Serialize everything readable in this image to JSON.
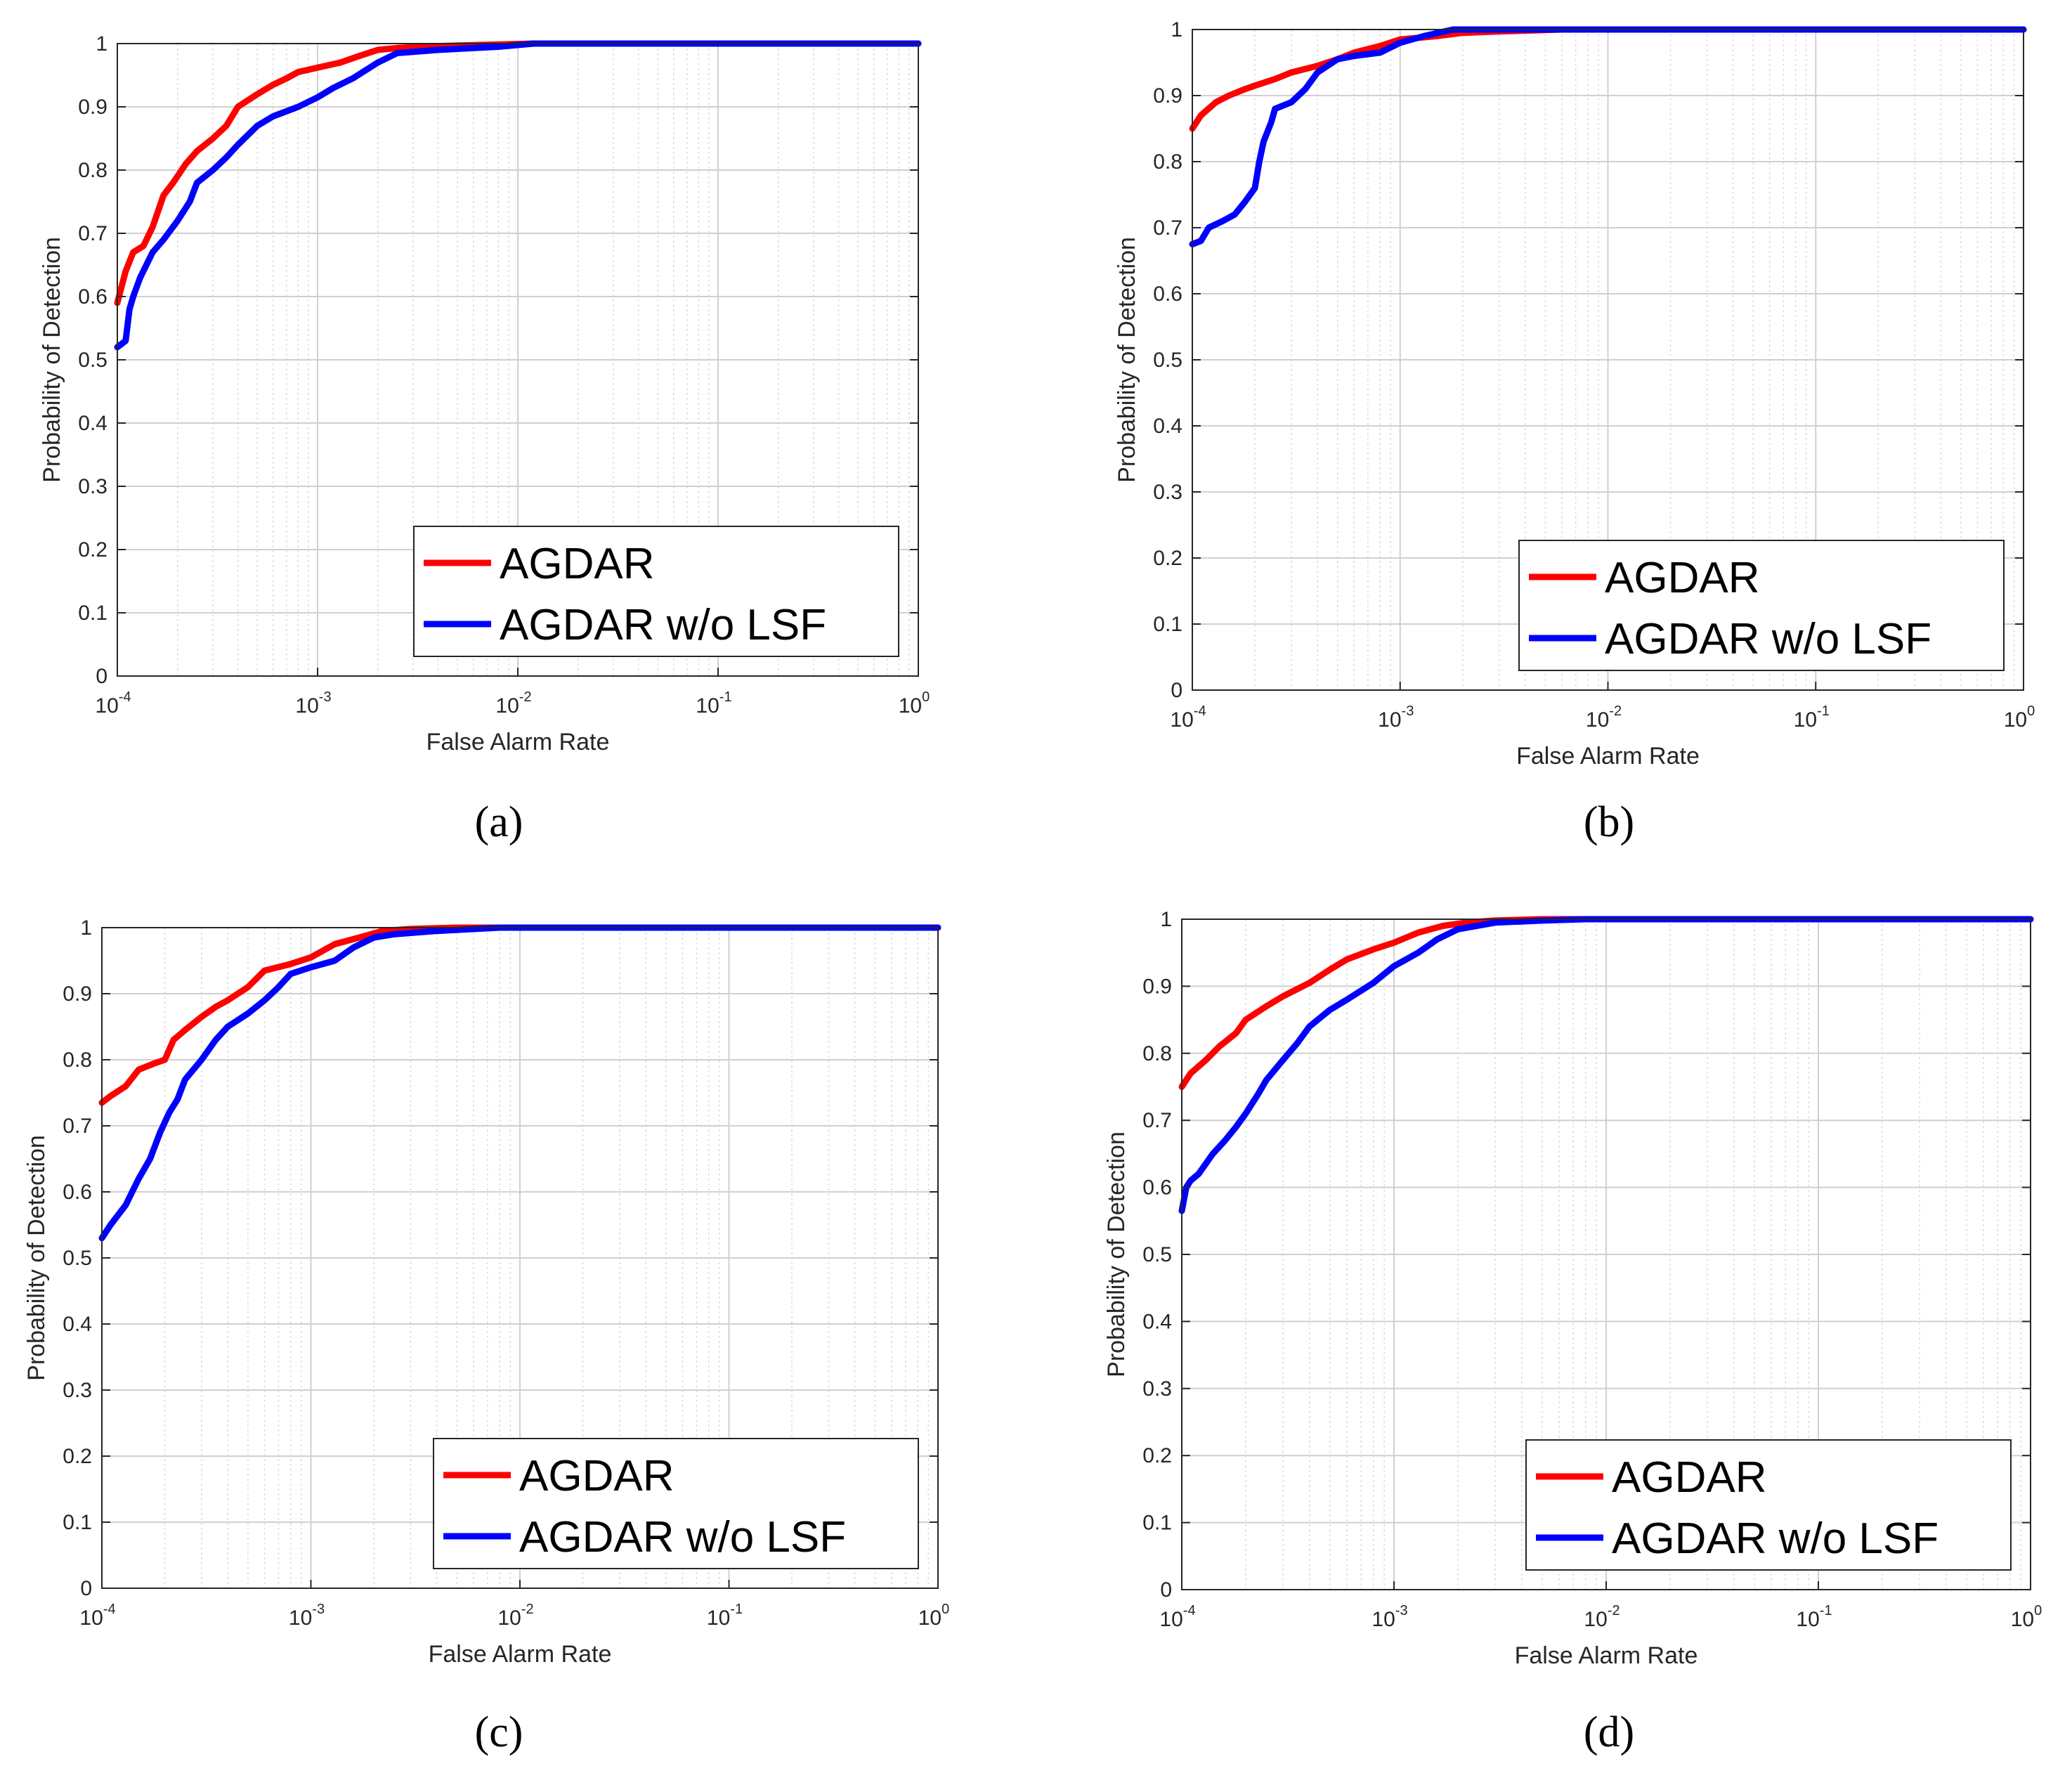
{
  "figure": {
    "panels": [
      {
        "caption": "(a)",
        "chart_data": {
          "type": "line",
          "xscale": "log",
          "xlim": [
            0.0001,
            1
          ],
          "ylim": [
            0,
            1
          ],
          "xlabel": "False Alarm Rate",
          "ylabel": "Probability of Detection",
          "xticks": [
            {
              "base": "10",
              "exp": "-4"
            },
            {
              "base": "10",
              "exp": "-3"
            },
            {
              "base": "10",
              "exp": "-2"
            },
            {
              "base": "10",
              "exp": "-1"
            },
            {
              "base": "10",
              "exp": "0"
            }
          ],
          "yticks": [
            "0",
            "0.1",
            "0.2",
            "0.3",
            "0.4",
            "0.5",
            "0.6",
            "0.7",
            "0.8",
            "0.9",
            "1"
          ],
          "grid": true,
          "legend_position": "bottom-right",
          "series": [
            {
              "name": "AGDAR",
              "color": "#ff0000",
              "x": [
                0.0001,
                0.00011,
                0.00012,
                0.000135,
                0.00015,
                0.00017,
                0.00019,
                0.00022,
                0.00025,
                0.0003,
                0.00035,
                0.0004,
                0.0005,
                0.0006,
                0.0007,
                0.0008,
                0.001,
                0.0013,
                0.0016,
                0.002,
                0.0025,
                0.004,
                0.007,
                0.012,
                1
              ],
              "y": [
                0.59,
                0.64,
                0.67,
                0.68,
                0.71,
                0.76,
                0.78,
                0.81,
                0.83,
                0.85,
                0.87,
                0.9,
                0.92,
                0.935,
                0.945,
                0.955,
                0.962,
                0.97,
                0.98,
                0.99,
                0.993,
                0.996,
                0.998,
                1.0,
                1.0
              ]
            },
            {
              "name": "AGDAR w/o LSF",
              "color": "#0000ff",
              "x": [
                0.0001,
                0.00011,
                0.000115,
                0.00012,
                0.00013,
                0.00015,
                0.00017,
                0.0002,
                0.00023,
                0.00025,
                0.0003,
                0.00035,
                0.0004,
                0.0005,
                0.0006,
                0.0008,
                0.001,
                0.0012,
                0.0015,
                0.002,
                0.0025,
                0.004,
                0.008,
                0.012,
                1
              ],
              "y": [
                0.52,
                0.53,
                0.58,
                0.6,
                0.63,
                0.67,
                0.69,
                0.72,
                0.75,
                0.78,
                0.8,
                0.82,
                0.84,
                0.87,
                0.885,
                0.9,
                0.915,
                0.93,
                0.945,
                0.97,
                0.985,
                0.99,
                0.995,
                1.0,
                1.0
              ]
            }
          ],
          "legend": [
            "AGDAR",
            "AGDAR w/o LSF"
          ]
        }
      },
      {
        "caption": "(b)",
        "chart_data": {
          "type": "line",
          "xscale": "log",
          "xlim": [
            0.0001,
            1
          ],
          "ylim": [
            0,
            1
          ],
          "xlabel": "False Alarm Rate",
          "ylabel": "Probability of Detection",
          "xticks": [
            {
              "base": "10",
              "exp": "-4"
            },
            {
              "base": "10",
              "exp": "-3"
            },
            {
              "base": "10",
              "exp": "-2"
            },
            {
              "base": "10",
              "exp": "-1"
            },
            {
              "base": "10",
              "exp": "0"
            }
          ],
          "yticks": [
            "0",
            "0.1",
            "0.2",
            "0.3",
            "0.4",
            "0.5",
            "0.6",
            "0.7",
            "0.8",
            "0.9",
            "1"
          ],
          "grid": true,
          "legend_position": "bottom-right",
          "series": [
            {
              "name": "AGDAR",
              "color": "#ff0000",
              "x": [
                0.0001,
                0.00011,
                0.00013,
                0.00015,
                0.00018,
                0.0002,
                0.00025,
                0.0003,
                0.0004,
                0.0005,
                0.0006,
                0.0008,
                0.001,
                0.0015,
                0.002,
                0.003,
                0.006,
                1
              ],
              "y": [
                0.85,
                0.87,
                0.89,
                0.9,
                0.91,
                0.915,
                0.925,
                0.935,
                0.945,
                0.955,
                0.965,
                0.975,
                0.985,
                0.99,
                0.995,
                0.997,
                1.0,
                1.0
              ]
            },
            {
              "name": "AGDAR w/o LSF",
              "color": "#0000ff",
              "x": [
                0.0001,
                0.00011,
                0.00012,
                0.00014,
                0.00016,
                0.00018,
                0.0002,
                0.00021,
                0.00022,
                0.00024,
                0.00025,
                0.0003,
                0.00035,
                0.0004,
                0.0005,
                0.0006,
                0.0008,
                0.001,
                0.0013,
                0.0018,
                1
              ],
              "y": [
                0.675,
                0.68,
                0.7,
                0.71,
                0.72,
                0.74,
                0.76,
                0.8,
                0.83,
                0.86,
                0.88,
                0.89,
                0.91,
                0.935,
                0.955,
                0.96,
                0.965,
                0.98,
                0.99,
                1.0,
                1.0
              ]
            }
          ],
          "legend": [
            "AGDAR",
            "AGDAR w/o LSF"
          ]
        }
      },
      {
        "caption": "(c)",
        "chart_data": {
          "type": "line",
          "xscale": "log",
          "xlim": [
            0.0001,
            1
          ],
          "ylim": [
            0,
            1
          ],
          "xlabel": "False Alarm Rate",
          "ylabel": "Probability of Detection",
          "xticks": [
            {
              "base": "10",
              "exp": "-4"
            },
            {
              "base": "10",
              "exp": "-3"
            },
            {
              "base": "10",
              "exp": "-2"
            },
            {
              "base": "10",
              "exp": "-1"
            },
            {
              "base": "10",
              "exp": "0"
            }
          ],
          "yticks": [
            "0",
            "0.1",
            "0.2",
            "0.3",
            "0.4",
            "0.5",
            "0.6",
            "0.7",
            "0.8",
            "0.9",
            "1"
          ],
          "grid": true,
          "legend_position": "bottom-right",
          "series": [
            {
              "name": "AGDAR",
              "color": "#ff0000",
              "x": [
                0.0001,
                0.00011,
                0.00013,
                0.00015,
                0.00018,
                0.0002,
                0.00022,
                0.00025,
                0.0003,
                0.00035,
                0.0004,
                0.0005,
                0.0006,
                0.0008,
                0.001,
                0.0013,
                0.0017,
                0.0022,
                0.003,
                0.005,
                0.008,
                1
              ],
              "y": [
                0.735,
                0.745,
                0.76,
                0.785,
                0.795,
                0.8,
                0.83,
                0.845,
                0.865,
                0.88,
                0.89,
                0.91,
                0.935,
                0.945,
                0.955,
                0.975,
                0.985,
                0.995,
                0.998,
                1.0,
                1.0,
                1.0
              ]
            },
            {
              "name": "AGDAR w/o LSF",
              "color": "#0000ff",
              "x": [
                0.0001,
                0.00011,
                0.00013,
                0.00015,
                0.00017,
                0.00019,
                0.00021,
                0.00023,
                0.00025,
                0.0003,
                0.00035,
                0.0004,
                0.0005,
                0.0006,
                0.0007,
                0.0008,
                0.001,
                0.0013,
                0.0016,
                0.002,
                0.0025,
                0.004,
                0.008,
                1
              ],
              "y": [
                0.53,
                0.55,
                0.58,
                0.62,
                0.65,
                0.69,
                0.72,
                0.74,
                0.77,
                0.8,
                0.83,
                0.85,
                0.87,
                0.89,
                0.91,
                0.93,
                0.94,
                0.95,
                0.97,
                0.985,
                0.99,
                0.995,
                1.0,
                1.0
              ]
            }
          ],
          "legend": [
            "AGDAR",
            "AGDAR w/o LSF"
          ]
        }
      },
      {
        "caption": "(d)",
        "chart_data": {
          "type": "line",
          "xscale": "log",
          "xlim": [
            0.0001,
            1
          ],
          "ylim": [
            0,
            1
          ],
          "xlabel": "False Alarm Rate",
          "ylabel": "Probability of Detection",
          "xticks": [
            {
              "base": "10",
              "exp": "-4"
            },
            {
              "base": "10",
              "exp": "-3"
            },
            {
              "base": "10",
              "exp": "-2"
            },
            {
              "base": "10",
              "exp": "-1"
            },
            {
              "base": "10",
              "exp": "0"
            }
          ],
          "yticks": [
            "0",
            "0.1",
            "0.2",
            "0.3",
            "0.4",
            "0.5",
            "0.6",
            "0.7",
            "0.8",
            "0.9",
            "1"
          ],
          "grid": true,
          "legend_position": "bottom-right",
          "series": [
            {
              "name": "AGDAR",
              "color": "#ff0000",
              "x": [
                0.0001,
                0.00011,
                0.00013,
                0.00015,
                0.00018,
                0.0002,
                0.00025,
                0.0003,
                0.0004,
                0.0005,
                0.0006,
                0.0008,
                0.001,
                0.0013,
                0.0017,
                0.0022,
                0.003,
                0.005,
                0.008,
                1
              ],
              "y": [
                0.75,
                0.77,
                0.79,
                0.81,
                0.83,
                0.85,
                0.87,
                0.885,
                0.905,
                0.925,
                0.94,
                0.955,
                0.965,
                0.98,
                0.99,
                0.995,
                0.998,
                1.0,
                1.0,
                1.0
              ]
            },
            {
              "name": "AGDAR w/o LSF",
              "color": "#0000ff",
              "x": [
                0.0001,
                0.000105,
                0.00011,
                0.00012,
                0.00014,
                0.00016,
                0.00018,
                0.0002,
                0.00023,
                0.00025,
                0.0003,
                0.00035,
                0.0004,
                0.0005,
                0.0006,
                0.0008,
                0.001,
                0.0013,
                0.0016,
                0.002,
                0.003,
                0.005,
                0.008,
                1
              ],
              "y": [
                0.565,
                0.6,
                0.61,
                0.62,
                0.65,
                0.67,
                0.69,
                0.71,
                0.74,
                0.76,
                0.79,
                0.815,
                0.84,
                0.865,
                0.88,
                0.905,
                0.93,
                0.95,
                0.97,
                0.985,
                0.995,
                0.998,
                1.0,
                1.0
              ]
            }
          ],
          "legend": [
            "AGDAR",
            "AGDAR w/o LSF"
          ]
        }
      }
    ]
  }
}
